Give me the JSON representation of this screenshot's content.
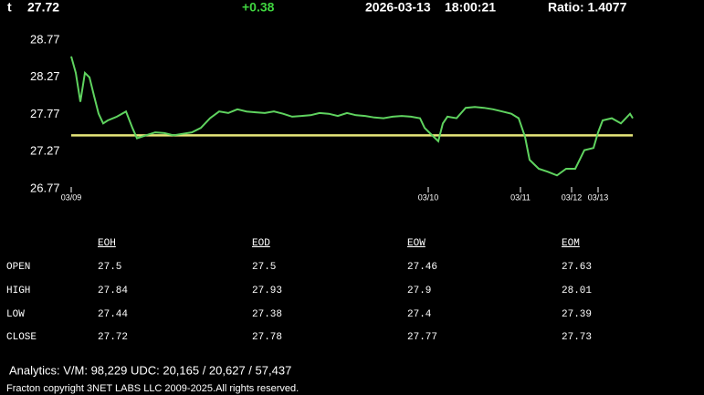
{
  "header": {
    "symbol": "t",
    "price": "27.72",
    "change": "+0.38",
    "date": "2026-03-13",
    "time": "18:00:21",
    "ratio": "Ratio: 1.4077"
  },
  "chart_data": {
    "type": "line",
    "x": [
      0,
      5,
      10,
      15,
      20,
      25,
      30,
      35,
      40,
      50,
      60,
      67,
      72,
      82,
      92,
      102,
      112,
      122,
      132,
      142,
      152,
      162,
      172,
      182,
      192,
      202,
      212,
      222,
      232,
      242,
      252,
      262,
      272,
      282,
      292,
      302,
      312,
      322,
      332,
      342,
      352,
      362,
      372,
      382,
      387,
      392,
      397,
      402,
      407,
      412,
      422,
      432,
      442,
      452,
      462,
      472,
      482,
      490,
      497,
      502,
      507,
      512,
      522,
      532,
      542,
      552,
      562,
      572,
      577,
      582,
      592,
      602,
      612,
      615
    ],
    "series": [
      {
        "color": "#5fd35f",
        "values": [
          28.55,
          28.33,
          27.94,
          28.33,
          28.27,
          28.02,
          27.78,
          27.65,
          27.69,
          27.74,
          27.81,
          27.59,
          27.45,
          27.49,
          27.53,
          27.52,
          27.49,
          27.51,
          27.53,
          27.59,
          27.72,
          27.81,
          27.79,
          27.84,
          27.81,
          27.8,
          27.79,
          27.81,
          27.78,
          27.74,
          27.75,
          27.76,
          27.79,
          27.78,
          27.75,
          27.79,
          27.76,
          27.75,
          27.73,
          27.72,
          27.74,
          27.75,
          27.74,
          27.72,
          27.59,
          27.53,
          27.47,
          27.41,
          27.65,
          27.74,
          27.72,
          27.86,
          27.87,
          27.86,
          27.84,
          27.81,
          27.78,
          27.72,
          27.47,
          27.16,
          27.1,
          27.04,
          27.0,
          26.95,
          27.04,
          27.04,
          27.29,
          27.32,
          27.53,
          27.69,
          27.72,
          27.65,
          27.78,
          27.72
        ]
      }
    ],
    "reference_line": 27.49,
    "reference_color": "#e6e67a",
    "xlim": [
      0,
      615
    ],
    "xticks": [
      {
        "value": 0,
        "label": "03/09"
      },
      {
        "value": 391,
        "label": "03/10"
      },
      {
        "value": 492,
        "label": "03/11"
      },
      {
        "value": 548,
        "label": "03/12"
      },
      {
        "value": 577,
        "label": "03/13"
      }
    ],
    "ylim": [
      26.77,
      28.77
    ],
    "yticks": [
      26.77,
      27.27,
      27.77,
      28.27,
      28.77
    ]
  },
  "table": {
    "columns": [
      "EOH",
      "EOD",
      "EOW",
      "EOM"
    ],
    "rows": [
      {
        "label": "OPEN",
        "values": [
          "27.5",
          "27.5",
          "27.46",
          "27.63"
        ]
      },
      {
        "label": "HIGH",
        "values": [
          "27.84",
          "27.93",
          "27.9",
          "28.01"
        ]
      },
      {
        "label": "LOW",
        "values": [
          "27.44",
          "27.38",
          "27.4",
          "27.39"
        ]
      },
      {
        "label": "CLOSE",
        "values": [
          "27.72",
          "27.78",
          "27.77",
          "27.73"
        ]
      }
    ]
  },
  "footer": {
    "analytics": "Analytics:  V/M: 98,229   UDC:  20,165  / 20,627   / 57,437",
    "copyright": "Fracton copyright 3NET LABS LLC 2009-2025.All rights reserved."
  }
}
